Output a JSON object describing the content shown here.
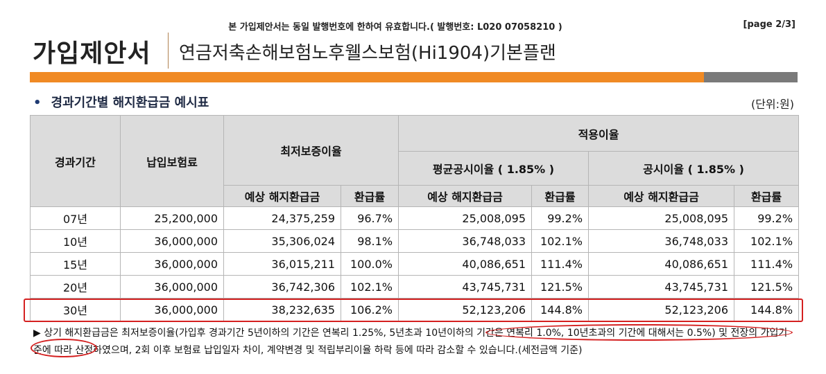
{
  "header": {
    "notice": "본 가입제안서는 동일 발행번호에 한하여 유효합니다.( 발행번호: L020 07058210 )",
    "page": "[page 2/3]",
    "doc_title": "가입제안서",
    "product_name": "연금저축손해보험노후웰스보험(Hi1904)기본플랜"
  },
  "section": {
    "bullet": "•",
    "title": "경과기간별 해지환급금 예시표",
    "unit": "(단위:원)"
  },
  "table": {
    "headers": {
      "period": "경과기간",
      "premium": "납입보험료",
      "min_rate": "최저보증이율",
      "applied_rate": "적용이율",
      "avg_rate": "평균공시이율 ( 1.85% )",
      "pub_rate": "공시이율 ( 1.85% )",
      "expected_refund": "예상 해지환급금",
      "refund_ratio": "환급률"
    },
    "rows": [
      [
        "07년",
        "25,200,000",
        "24,375,259",
        "96.7%",
        "25,008,095",
        "99.2%",
        "25,008,095",
        "99.2%"
      ],
      [
        "10년",
        "36,000,000",
        "35,306,024",
        "98.1%",
        "36,748,033",
        "102.1%",
        "36,748,033",
        "102.1%"
      ],
      [
        "15년",
        "36,000,000",
        "36,015,211",
        "100.0%",
        "40,086,651",
        "111.4%",
        "40,086,651",
        "111.4%"
      ],
      [
        "20년",
        "36,000,000",
        "36,742,306",
        "102.1%",
        "43,745,731",
        "121.5%",
        "43,745,731",
        "121.5%"
      ],
      [
        "30년",
        "36,000,000",
        "38,232,635",
        "106.2%",
        "52,123,206",
        "144.8%",
        "52,123,206",
        "144.8%"
      ]
    ]
  },
  "footnote": "▶ 상기 해지환급금은 최저보증이율(가입후 경과기간 5년이하의 기간은 연복리 1.25%, 5년초과 10년이하의 기간은 연복리 1.0%, 10년초과의 기간에 대해서는 0.5%) 및 전장의 가입기준에 따라 산정하였으며, 2회 이후 보험료 납입일자 차이, 계약변경 및 적립부리이율 하락 등에 따라 감소할 수 있습니다.(세전금액 기준)",
  "colors": {
    "accent_orange": "#f08a24",
    "bar_gray": "#7a7a7a",
    "annotation_red": "#d42020",
    "header_gray": "#dcdcdc"
  }
}
